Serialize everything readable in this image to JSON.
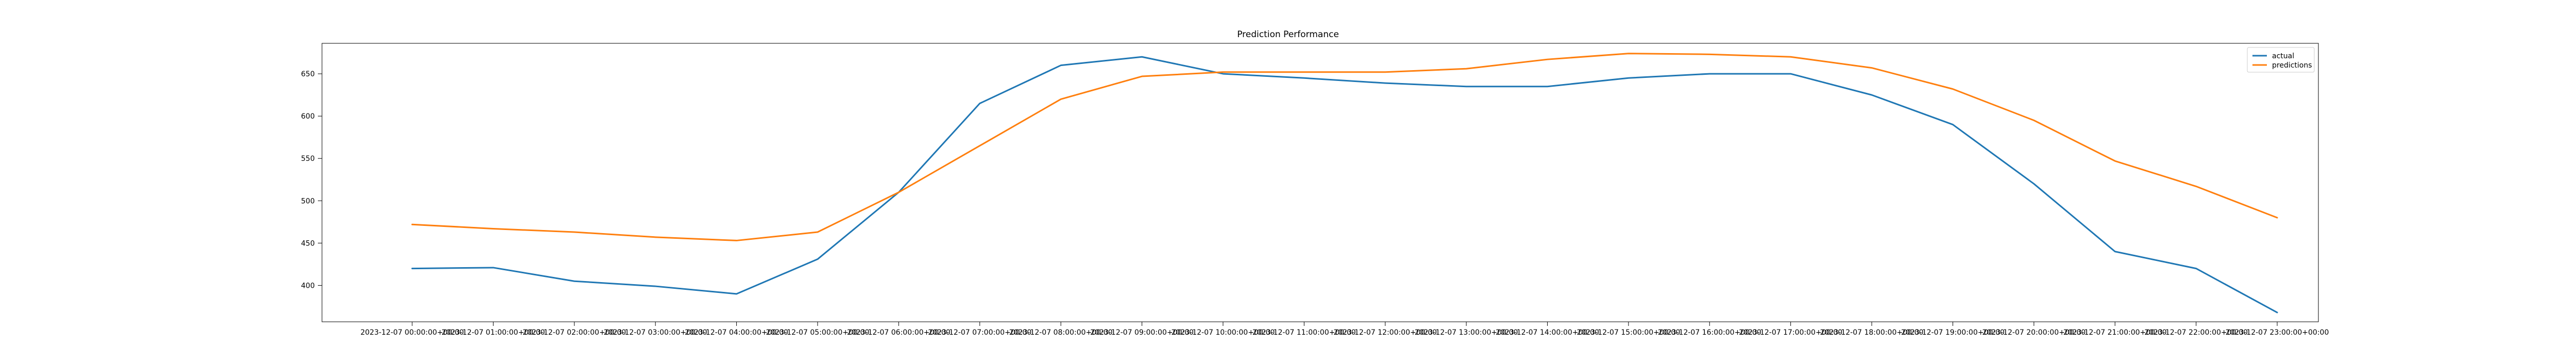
{
  "chart_data": {
    "type": "line",
    "title": "Prediction Performance",
    "xlabel": "",
    "ylabel": "",
    "x": [
      "2023-12-07 00:00:00+00:00",
      "2023-12-07 01:00:00+00:00",
      "2023-12-07 02:00:00+00:00",
      "2023-12-07 03:00:00+00:00",
      "2023-12-07 04:00:00+00:00",
      "2023-12-07 05:00:00+00:00",
      "2023-12-07 06:00:00+00:00",
      "2023-12-07 07:00:00+00:00",
      "2023-12-07 08:00:00+00:00",
      "2023-12-07 09:00:00+00:00",
      "2023-12-07 10:00:00+00:00",
      "2023-12-07 11:00:00+00:00",
      "2023-12-07 12:00:00+00:00",
      "2023-12-07 13:00:00+00:00",
      "2023-12-07 14:00:00+00:00",
      "2023-12-07 15:00:00+00:00",
      "2023-12-07 16:00:00+00:00",
      "2023-12-07 17:00:00+00:00",
      "2023-12-07 18:00:00+00:00",
      "2023-12-07 19:00:00+00:00",
      "2023-12-07 20:00:00+00:00",
      "2023-12-07 21:00:00+00:00",
      "2023-12-07 22:00:00+00:00",
      "2023-12-07 23:00:00+00:00"
    ],
    "series": [
      {
        "name": "actual",
        "color": "#1f77b4",
        "values": [
          420,
          421,
          405,
          399,
          390,
          431,
          510,
          615,
          660,
          670,
          650,
          645,
          639,
          635,
          635,
          645,
          650,
          650,
          625,
          590,
          520,
          440,
          420,
          368
        ]
      },
      {
        "name": "predictions",
        "color": "#ff7f0e",
        "values": [
          472,
          467,
          463,
          457,
          453,
          463,
          510,
          565,
          620,
          647,
          652,
          652,
          652,
          656,
          667,
          674,
          673,
          670,
          657,
          632,
          595,
          547,
          517,
          480
        ]
      }
    ],
    "ylim": [
      357,
      686
    ],
    "yticks": [
      400,
      450,
      500,
      550,
      600,
      650
    ],
    "grid": false,
    "legend_position": "top-right"
  }
}
